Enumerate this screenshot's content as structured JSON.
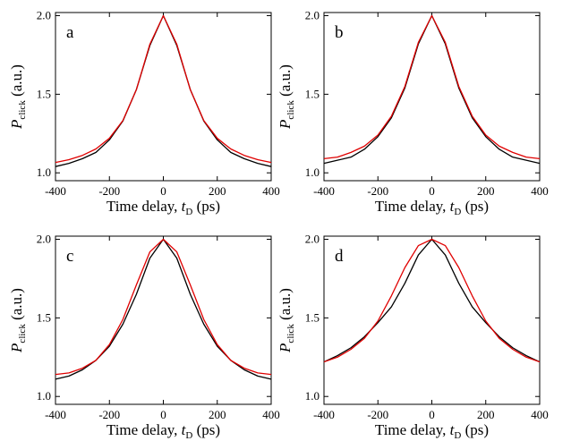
{
  "chart_data": [
    {
      "type": "line",
      "label": "a",
      "x": [
        -400,
        -350,
        -300,
        -250,
        -200,
        -150,
        -100,
        -50,
        0,
        50,
        100,
        150,
        200,
        250,
        300,
        350,
        400
      ],
      "series": [
        {
          "color": "#000000",
          "values": [
            1.04,
            1.06,
            1.09,
            1.13,
            1.21,
            1.33,
            1.53,
            1.81,
            2.0,
            1.81,
            1.53,
            1.33,
            1.21,
            1.13,
            1.09,
            1.06,
            1.04
          ]
        },
        {
          "color": "#e00000",
          "values": [
            1.066,
            1.084,
            1.111,
            1.152,
            1.22,
            1.333,
            1.529,
            1.818,
            2.0,
            1.818,
            1.529,
            1.333,
            1.22,
            1.152,
            1.111,
            1.084,
            1.066
          ]
        }
      ],
      "xlim": [
        -400,
        400
      ],
      "ylim": [
        0.95,
        2.02
      ],
      "xticks": [
        -400,
        -200,
        0,
        200,
        400
      ],
      "yticks": [
        {
          "value": 1,
          "label": "1.0"
        },
        {
          "value": 1.5,
          "label": "1.5"
        },
        {
          "value": 2,
          "label": "2.0"
        }
      ],
      "x_label": [
        "Time delay, ",
        "t",
        "D",
        " (ps)"
      ],
      "y_label": [
        "P",
        "click",
        " (a.u.)"
      ]
    },
    {
      "type": "line",
      "label": "b",
      "x": [
        -400,
        -350,
        -300,
        -250,
        -200,
        -150,
        -100,
        -50,
        0,
        50,
        100,
        150,
        200,
        250,
        300,
        350,
        400
      ],
      "series": [
        {
          "color": "#000000",
          "values": [
            1.06,
            1.08,
            1.1,
            1.15,
            1.23,
            1.35,
            1.54,
            1.82,
            2.0,
            1.82,
            1.54,
            1.35,
            1.23,
            1.15,
            1.1,
            1.08,
            1.06
          ]
        },
        {
          "color": "#e00000",
          "values": [
            1.09,
            1.1,
            1.13,
            1.17,
            1.24,
            1.36,
            1.55,
            1.83,
            2.0,
            1.83,
            1.55,
            1.36,
            1.24,
            1.17,
            1.13,
            1.1,
            1.09
          ]
        }
      ],
      "xlim": [
        -400,
        400
      ],
      "ylim": [
        0.95,
        2.02
      ],
      "xticks": [
        -400,
        -200,
        0,
        200,
        400
      ],
      "yticks": [
        {
          "value": 1,
          "label": "1.0"
        },
        {
          "value": 1.5,
          "label": "1.5"
        },
        {
          "value": 2,
          "label": "2.0"
        }
      ],
      "x_label": [
        "Time delay, ",
        "t",
        "D",
        " (ps)"
      ],
      "y_label": [
        "P",
        "click",
        " (a.u.)"
      ]
    },
    {
      "type": "line",
      "label": "c",
      "x": [
        -400,
        -350,
        -300,
        -250,
        -200,
        -150,
        -100,
        -50,
        0,
        50,
        100,
        150,
        200,
        250,
        300,
        350,
        400
      ],
      "series": [
        {
          "color": "#000000",
          "values": [
            1.11,
            1.13,
            1.17,
            1.23,
            1.32,
            1.46,
            1.65,
            1.88,
            2.0,
            1.88,
            1.65,
            1.46,
            1.32,
            1.23,
            1.17,
            1.13,
            1.11
          ]
        },
        {
          "color": "#e00000",
          "values": [
            1.14,
            1.15,
            1.18,
            1.23,
            1.33,
            1.49,
            1.71,
            1.92,
            2.0,
            1.92,
            1.71,
            1.49,
            1.33,
            1.23,
            1.18,
            1.15,
            1.14
          ]
        }
      ],
      "xlim": [
        -400,
        400
      ],
      "ylim": [
        0.95,
        2.02
      ],
      "xticks": [
        -400,
        -200,
        0,
        200,
        400
      ],
      "yticks": [
        {
          "value": 1,
          "label": "1.0"
        },
        {
          "value": 1.5,
          "label": "1.5"
        },
        {
          "value": 2,
          "label": "2.0"
        }
      ],
      "x_label": [
        "Time delay, ",
        "t",
        "D",
        " (ps)"
      ],
      "y_label": [
        "P",
        "click",
        " (a.u.)"
      ]
    },
    {
      "type": "line",
      "label": "d",
      "x": [
        -400,
        -350,
        -300,
        -250,
        -200,
        -150,
        -100,
        -50,
        0,
        50,
        100,
        150,
        200,
        250,
        300,
        350,
        400
      ],
      "series": [
        {
          "color": "#000000",
          "values": [
            1.22,
            1.26,
            1.31,
            1.38,
            1.47,
            1.57,
            1.72,
            1.9,
            2.0,
            1.9,
            1.72,
            1.57,
            1.47,
            1.38,
            1.31,
            1.26,
            1.22
          ]
        },
        {
          "color": "#e00000",
          "values": [
            1.22,
            1.25,
            1.3,
            1.37,
            1.48,
            1.64,
            1.82,
            1.96,
            2.0,
            1.96,
            1.82,
            1.64,
            1.48,
            1.37,
            1.3,
            1.25,
            1.22
          ]
        }
      ],
      "xlim": [
        -400,
        400
      ],
      "ylim": [
        0.95,
        2.02
      ],
      "xticks": [
        -400,
        -200,
        0,
        200,
        400
      ],
      "yticks": [
        {
          "value": 1,
          "label": "1.0"
        },
        {
          "value": 1.5,
          "label": "1.5"
        },
        {
          "value": 2,
          "label": "2.0"
        }
      ],
      "x_label": [
        "Time delay, ",
        "t",
        "D",
        " (ps)"
      ],
      "y_label": [
        "P",
        "click",
        " (a.u.)"
      ]
    }
  ]
}
